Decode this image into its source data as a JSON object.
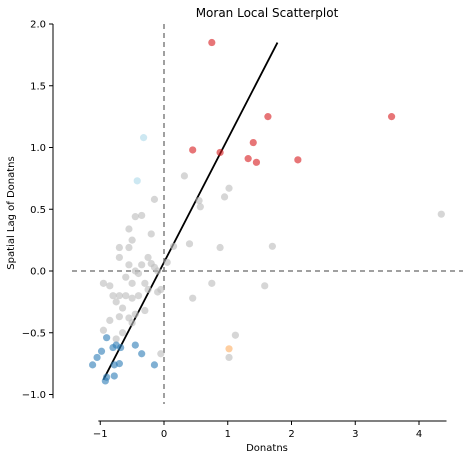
{
  "chart_data": {
    "type": "scatter",
    "title": "Moran Local Scatterplot",
    "xlabel": "Donatns",
    "ylabel": "Spatial Lag of Donatns",
    "xlim": [
      -1.3,
      4.4
    ],
    "ylim": [
      -1.05,
      2.0
    ],
    "xticks": [
      -1,
      0,
      1,
      2,
      3,
      4
    ],
    "xtick_labels": [
      "−1",
      "0",
      "1",
      "2",
      "3",
      "4"
    ],
    "yticks": [
      -1.0,
      -0.5,
      0.0,
      0.5,
      1.0,
      1.5,
      2.0
    ],
    "ytick_labels": [
      "−1.0",
      "−0.5",
      "0.0",
      "0.5",
      "1.0",
      "1.5",
      "2.0"
    ],
    "reference_lines": {
      "x": 0,
      "y": 0,
      "style": "dashed",
      "color": "#808080"
    },
    "fit_line": {
      "x": [
        -0.95,
        1.78
      ],
      "y": [
        -0.88,
        1.85
      ],
      "color": "#000000"
    },
    "grid": false,
    "colors": {
      "not_significant": "#bababa",
      "high_high": "#d7191c",
      "low_high": "#abd9e9",
      "low_low": "#2c7bb6",
      "high_low": "#fdae61"
    },
    "series": [
      {
        "category": "not_significant",
        "points": [
          [
            -0.45,
            0.44
          ],
          [
            -0.35,
            0.45
          ],
          [
            -0.15,
            0.58
          ],
          [
            -0.55,
            0.34
          ],
          [
            -0.5,
            0.25
          ],
          [
            -0.7,
            0.19
          ],
          [
            -0.55,
            0.19
          ],
          [
            -0.7,
            0.11
          ],
          [
            -0.55,
            0.05
          ],
          [
            -0.45,
            0.0
          ],
          [
            -0.35,
            0.05
          ],
          [
            -0.25,
            0.11
          ],
          [
            -0.2,
            0.06
          ],
          [
            -0.15,
            0.03
          ],
          [
            -0.1,
            0.0
          ],
          [
            0.05,
            0.07
          ],
          [
            0.15,
            0.2
          ],
          [
            -0.2,
            0.3
          ],
          [
            -0.4,
            -0.02
          ],
          [
            -0.6,
            -0.05
          ],
          [
            -0.5,
            -0.1
          ],
          [
            -0.3,
            -0.1
          ],
          [
            -0.25,
            -0.15
          ],
          [
            -0.1,
            -0.17
          ],
          [
            -0.05,
            -0.15
          ],
          [
            -0.95,
            -0.1
          ],
          [
            -0.85,
            -0.12
          ],
          [
            -0.7,
            -0.2
          ],
          [
            -0.6,
            -0.2
          ],
          [
            -0.5,
            -0.22
          ],
          [
            -0.4,
            -0.2
          ],
          [
            -0.8,
            -0.2
          ],
          [
            -0.75,
            -0.25
          ],
          [
            -0.65,
            -0.3
          ],
          [
            -0.45,
            -0.35
          ],
          [
            -0.3,
            -0.32
          ],
          [
            -0.55,
            -0.38
          ],
          [
            -0.7,
            -0.37
          ],
          [
            -0.85,
            -0.4
          ],
          [
            -0.5,
            -0.42
          ],
          [
            -0.65,
            -0.5
          ],
          [
            -0.75,
            -0.55
          ],
          [
            -0.95,
            -0.48
          ],
          [
            -0.05,
            -0.67
          ],
          [
            0.4,
            0.22
          ],
          [
            0.32,
            0.77
          ],
          [
            0.55,
            0.57
          ],
          [
            0.57,
            0.52
          ],
          [
            0.95,
            0.6
          ],
          [
            1.02,
            0.67
          ],
          [
            0.88,
            0.19
          ],
          [
            0.75,
            -0.1
          ],
          [
            0.45,
            -0.22
          ],
          [
            1.12,
            -0.52
          ],
          [
            1.02,
            -0.7
          ],
          [
            1.58,
            -0.12
          ],
          [
            1.7,
            0.2
          ],
          [
            4.35,
            0.46
          ]
        ]
      },
      {
        "category": "high_high",
        "points": [
          [
            0.75,
            1.85
          ],
          [
            0.45,
            0.98
          ],
          [
            0.88,
            0.96
          ],
          [
            1.32,
            0.91
          ],
          [
            1.45,
            0.88
          ],
          [
            1.4,
            1.04
          ],
          [
            1.63,
            1.25
          ],
          [
            2.1,
            0.9
          ],
          [
            3.57,
            1.25
          ]
        ]
      },
      {
        "category": "low_high",
        "points": [
          [
            -0.32,
            1.08
          ],
          [
            -0.42,
            0.73
          ]
        ]
      },
      {
        "category": "low_low",
        "points": [
          [
            -0.9,
            -0.54
          ],
          [
            -0.8,
            -0.62
          ],
          [
            -0.75,
            -0.6
          ],
          [
            -0.68,
            -0.62
          ],
          [
            -0.45,
            -0.6
          ],
          [
            -0.35,
            -0.67
          ],
          [
            -1.05,
            -0.7
          ],
          [
            -0.98,
            -0.65
          ],
          [
            -1.12,
            -0.76
          ],
          [
            -0.78,
            -0.76
          ],
          [
            -0.7,
            -0.75
          ],
          [
            -0.15,
            -0.76
          ],
          [
            -0.92,
            -0.89
          ],
          [
            -0.9,
            -0.86
          ],
          [
            -0.78,
            -0.85
          ]
        ]
      },
      {
        "category": "high_low",
        "points": [
          [
            1.02,
            -0.63
          ]
        ]
      }
    ]
  }
}
